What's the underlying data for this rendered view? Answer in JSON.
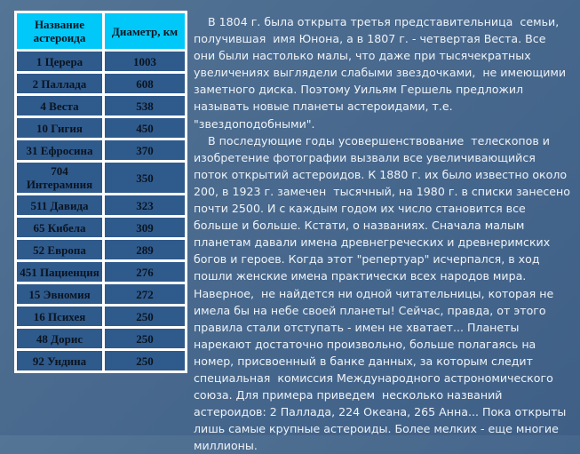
{
  "table": {
    "headers": [
      "Название астероида",
      "Диаметр, км"
    ],
    "rows": [
      [
        "1 Церера",
        "1003"
      ],
      [
        "2 Паллада",
        "608"
      ],
      [
        "4 Веста",
        "538"
      ],
      [
        "10 Гигия",
        "450"
      ],
      [
        "31 Ефросина",
        "370"
      ],
      [
        "704 Интерамния",
        "350"
      ],
      [
        "511 Давида",
        "323"
      ],
      [
        "65 Кибела",
        "309"
      ],
      [
        "52 Европа",
        "289"
      ],
      [
        "451 Пациенция",
        "276"
      ],
      [
        "15 Эвномия",
        "272"
      ],
      [
        "16 Психея",
        "250"
      ],
      [
        "48 Дорис",
        "250"
      ],
      [
        "92 Ундина",
        "250"
      ]
    ]
  },
  "text_lines": [
    "    В 1804 г. была открыта третья представительница  семьи,",
    "получившая  имя Юнона, а в 1807 г. - четвертая Веста. Все",
    "они были настолько малы, что даже при тысячекратных",
    "увеличениях выглядели слабыми звездочками,  не имеющими",
    "заметного диска. Поэтому Уильям Гершель предложил",
    "называть новые планеты астероидами, т.е.",
    "\"звездоподобными\".",
    "    В последующие годы усовершенствование  телескопов и",
    "изобретение фотографии вызвали все увеличивающийся",
    "поток открытий астероидов. К 1880 г. их было известно около",
    "200, в 1923 г. замечен  тысячный, на 1980 г. в списки занесено",
    "почти 2500. И с каждым годом их число становится все",
    "больше и больше. Кстати, о названиях. Сначала малым",
    "планетам давали имена древнегреческих и древнеримских",
    "богов и героев. Когда этот \"репертуар\" исчерпался, в ход",
    "пошли женские имена практически всех народов мира.",
    "Наверное,  не найдется ни одной читательницы, которая не",
    "имела бы на небе своей планеты! Сейчас, правда, от этого",
    "правила стали отступать - имен не хватает... Планеты",
    "нарекают достаточно произвольно, больше полагаясь на",
    "номер, присвоенный в банке данных, за которым следит",
    "специальная  комиссия Международного астрономического",
    "союза. Для примера приведем  несколько названий",
    "астероидов: 2 Паллада, 224 Океана, 265 Анна... Пока открыты",
    "лишь самые крупные астероиды. Более мелких - еще многие",
    "миллионы."
  ]
}
